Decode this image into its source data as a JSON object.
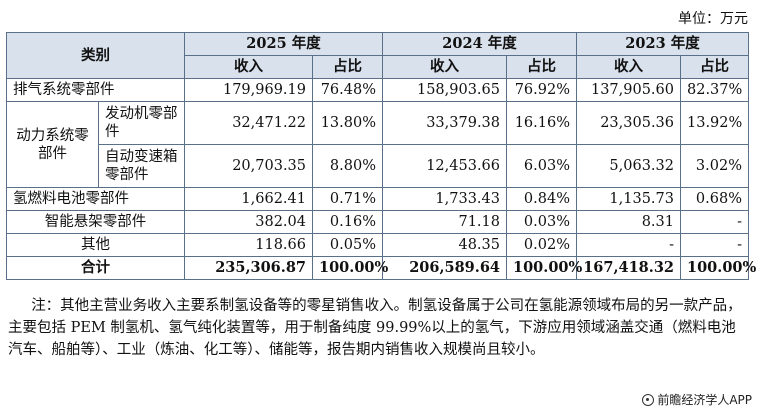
{
  "unit_label": "单位：万元",
  "header": {
    "category": "类别",
    "years": [
      "2025 年度",
      "2024 年度",
      "2023 年度"
    ],
    "col_income": "收入",
    "col_share": "占比"
  },
  "rows": [
    {
      "name": "排气系统零部件",
      "v2025": "179,969.19",
      "p2025": "76.48%",
      "v2024": "158,903.65",
      "p2024": "76.92%",
      "v2023": "137,905.60",
      "p2023": "82.37%"
    },
    {
      "group": "动力系统零部件",
      "name": "发动机零部件",
      "v2025": "32,471.22",
      "p2025": "13.80%",
      "v2024": "33,379.38",
      "p2024": "16.16%",
      "v2023": "23,305.36",
      "p2023": "13.92%"
    },
    {
      "name": "自动变速箱零部件",
      "v2025": "20,703.35",
      "p2025": "8.80%",
      "v2024": "12,453.66",
      "p2024": "6.03%",
      "v2023": "5,063.32",
      "p2023": "3.02%"
    },
    {
      "name": "氢燃料电池零部件",
      "v2025": "1,662.41",
      "p2025": "0.71%",
      "v2024": "1,733.43",
      "p2024": "0.84%",
      "v2023": "1,135.73",
      "p2023": "0.68%"
    },
    {
      "name": "智能悬架零部件",
      "v2025": "382.04",
      "p2025": "0.16%",
      "v2024": "71.18",
      "p2024": "0.03%",
      "v2023": "8.31",
      "p2023": "-"
    },
    {
      "name": "其他",
      "v2025": "118.66",
      "p2025": "0.05%",
      "v2024": "48.35",
      "p2024": "0.02%",
      "v2023": "-",
      "p2023": "-"
    },
    {
      "name": "合计",
      "v2025": "235,306.87",
      "p2025": "100.00%",
      "v2024": "206,589.64",
      "p2024": "100.00%",
      "v2023": "167,418.32",
      "p2023": "100.00%"
    }
  ],
  "note": "注：其他主营业务收入主要系制氢设备等的零星销售收入。制氢设备属于公司在氢能源领域布局的另一款产品，主要包括 PEM 制氢机、氢气纯化装置等，用于制备纯度 99.99%以上的氢气，下游应用领域涵盖交通（燃料电池汽车、船舶等）、工业（炼油、化工等）、储能等，报告期内销售收入规模尚且较小。",
  "brand": "前瞻经济学人APP",
  "brand_icon": "brand-logo-icon"
}
